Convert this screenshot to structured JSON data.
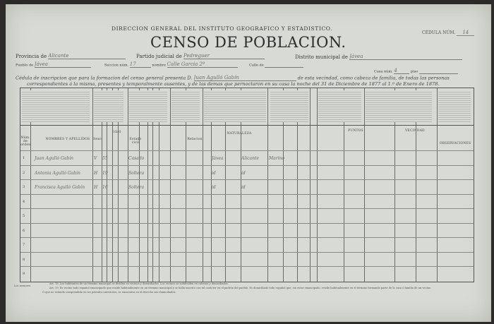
{
  "header": {
    "agency": "DIRECCION GENERAL DEL INSTITUTO GEOGRAFICO Y ESTADISTICO.",
    "title": "CENSO DE POBLACION.",
    "cedula_label": "CÉDULA NÚM.",
    "cedula_value": "14"
  },
  "fields": {
    "provincia_label": "Provincia de",
    "provincia_value": "Alicante",
    "partido_label": "Partido judicial de",
    "partido_value": "Pedreguer",
    "distrito_label": "Distrito municipal de",
    "distrito_value": "Jávea",
    "pueblo_label": "Pueblo de",
    "pueblo_value": "Jávea",
    "seccion_label": "Seccion núm.",
    "seccion_value": "17",
    "nombre_label": "nombre",
    "nombre_value": "Calle Garcia 2º",
    "calle_label": "Calle de",
    "calle_value": "",
    "casa_label": "Casa núm.",
    "casa_value": "4",
    "piso_label": "piso",
    "piso_value": ""
  },
  "declaration": {
    "part1": "Cédula de inscripcion que para la formacion del censo general presenta D.",
    "head_name": "Juan Agulló Gabín",
    "part2": "de esta vecindad, como cabeza de familia, de todas las personas",
    "line2": "correspondientes á la misma, presentes y temporalmente ausentes, y de las demas que pernoctaron en su casa la noche del 31 de Diciembre de 1877 al 1.º de Enero de 1878."
  },
  "columns": {
    "num": "Núm. de orden",
    "names": "NOMBRES Y APELLIDOS",
    "sexo": "Sexo",
    "edad": "Edad",
    "estado": "Estado civil",
    "relacion": "Relacion",
    "naturaleza": "NATURALEZA",
    "puntos": "PUNTOS",
    "vecindad": "VECINDAD",
    "observaciones": "OBSERVACIONES"
  },
  "rows": [
    {
      "n": "1",
      "name": "Juan Agulló Gabín",
      "sexo": "V",
      "edad": "55",
      "estado": "Casado",
      "pueblo": "Jávea",
      "prov": "Alicante",
      "prof": "Marino"
    },
    {
      "n": "2",
      "name": "Antonia Agulló Gabín",
      "sexo": "H",
      "edad": "19",
      "estado": "Soltera",
      "pueblo": "id",
      "prov": "id",
      "prof": ""
    },
    {
      "n": "3",
      "name": "Francisca Agulló Gabín",
      "sexo": "H",
      "edad": "16",
      "estado": "Soltera",
      "pueblo": "id",
      "prov": "id",
      "prof": ""
    },
    {
      "n": "4"
    },
    {
      "n": "5"
    },
    {
      "n": "6"
    },
    {
      "n": "7"
    },
    {
      "n": "8"
    },
    {
      "n": "9"
    }
  ],
  "footer": {
    "label": "Los menores.",
    "art1": "Art. 18. Los habitantes de un término municipal se dividen en vecinos y domiciliados. Los vecinos se subdividen en cabezas y domiciliados.",
    "art2": "Art. 19. Es vecino todo español emancipado que reside habitualmente en un término municipal y se halla inscrito con tal carácter en el padrón del pueblo. Es domiciliado todo español que, sin estar emancipado, reside habitualmente en el término formando parte de la casa ó familia de un vecino.",
    "art3": "Ó que no estando comprendido en los párrafos anteriores, se encuentra en el derecho sus domiciliados."
  }
}
